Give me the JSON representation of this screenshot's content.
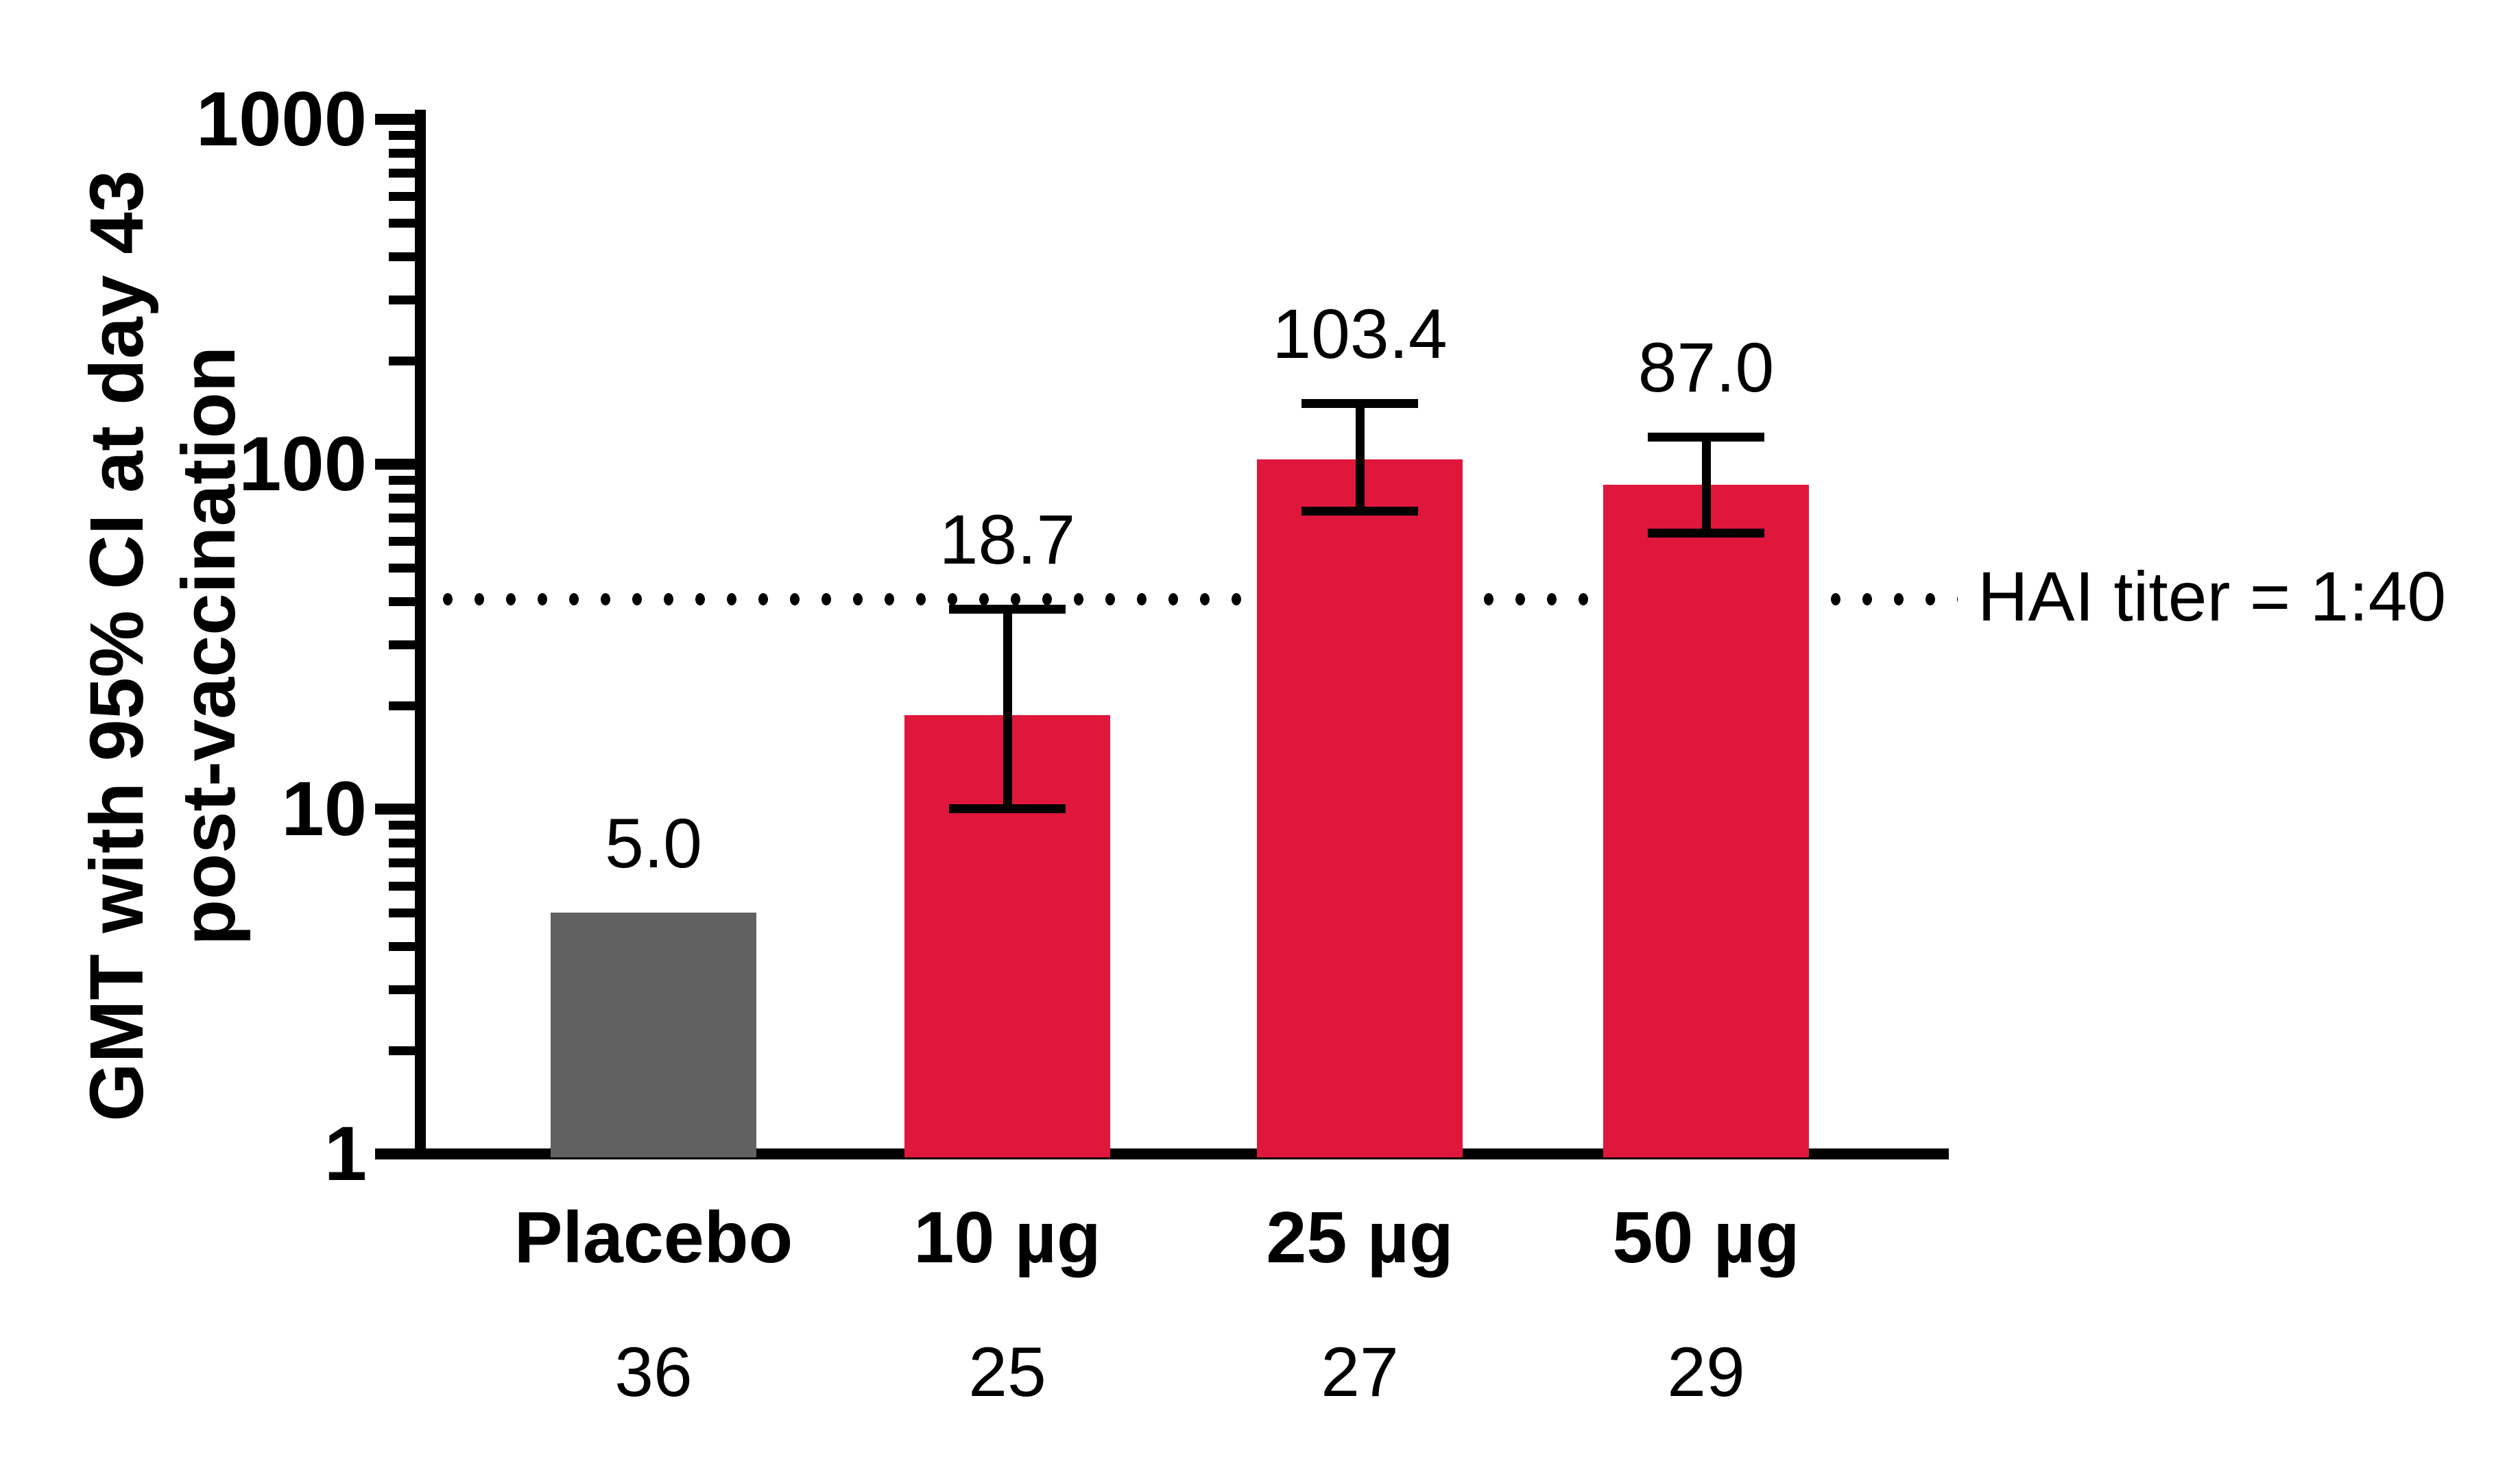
{
  "figure": {
    "y_axis_title_line1": "GMT with 95% CI at day 43",
    "y_axis_title_line2": "post-vaccination",
    "reference_line_label": "HAI titer = 1:40"
  },
  "chart_data": {
    "type": "bar",
    "y_scale": "log10",
    "ylim": [
      1,
      1000
    ],
    "grid": "off",
    "legend": "none",
    "ylabel": "GMT with 95% CI at day 43 post-vaccination",
    "xlabel": "",
    "y_major_ticks": [
      1000,
      100,
      10,
      1
    ],
    "y_major_tick_labels": [
      "1000",
      "100",
      "10",
      "1"
    ],
    "categories": [
      "Placebo",
      "10 µg",
      "25 µg",
      "50 µg"
    ],
    "values": [
      5.0,
      18.7,
      103.4,
      87.0
    ],
    "value_labels": [
      "5.0",
      "18.7",
      "103.4",
      "87.0"
    ],
    "n_per_group": [
      "36",
      "25",
      "27",
      "29"
    ],
    "ci_low": [
      null,
      10,
      73,
      63
    ],
    "ci_high": [
      null,
      38,
      150,
      120
    ],
    "bar_colors": [
      "#616161",
      "#E0173C",
      "#E0173C",
      "#E0173C"
    ],
    "reference_line": {
      "value": 40,
      "label": "HAI titer = 1:40"
    },
    "colors": {
      "bar_red": "#E0173C",
      "bar_gray": "#616161",
      "axis_black": "#000000"
    }
  }
}
